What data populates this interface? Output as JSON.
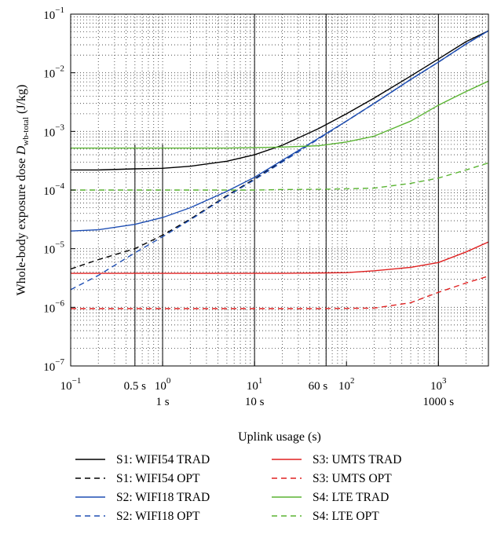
{
  "chart_data": {
    "type": "line",
    "title": "",
    "xlabel": "Uplink usage (s)",
    "ylabel": {
      "prefix": "Whole-body exposure dose ",
      "symbol": "D",
      "subscript": "wb-total",
      "unit": " (J/kg)"
    },
    "x_scale": "log",
    "y_scale": "log",
    "xlim": [
      0.1,
      3500
    ],
    "ylim": [
      1e-07,
      0.1
    ],
    "x_ticks": [
      {
        "value": 0.1,
        "base": "10",
        "exp": "−1"
      },
      {
        "value": 1,
        "base": "10",
        "exp": "0"
      },
      {
        "value": 10,
        "base": "10",
        "exp": "1"
      },
      {
        "value": 100,
        "base": "10",
        "exp": "2"
      },
      {
        "value": 1000,
        "base": "10",
        "exp": "3"
      }
    ],
    "y_ticks": [
      {
        "value": 1e-07,
        "base": "10",
        "exp": "−7"
      },
      {
        "value": 1e-06,
        "base": "10",
        "exp": "−6"
      },
      {
        "value": 1e-05,
        "base": "10",
        "exp": "−5"
      },
      {
        "value": 0.0001,
        "base": "10",
        "exp": "−4"
      },
      {
        "value": 0.001,
        "base": "10",
        "exp": "−3"
      },
      {
        "value": 0.01,
        "base": "10",
        "exp": "−2"
      },
      {
        "value": 0.1,
        "base": "10",
        "exp": "−1"
      }
    ],
    "grid": "dotted minor grid on both axes",
    "reference_lines": [
      {
        "x": 0.5,
        "label": "0.5 s",
        "y_top": 0.0006
      },
      {
        "x": 1,
        "label": "1 s",
        "y_top": 0.0006
      },
      {
        "x": 10,
        "label": "10 s",
        "y_top": 0.1
      },
      {
        "x": 60,
        "label": "60 s",
        "y_top": 0.1
      },
      {
        "x": 1000,
        "label": "1000 s",
        "y_top": 0.1
      }
    ],
    "x": [
      0.1,
      0.2,
      0.5,
      1,
      2,
      5,
      10,
      20,
      50,
      100,
      200,
      500,
      1000,
      2000,
      3500
    ],
    "series": [
      {
        "name": "S1: WIFI54 TRAD",
        "color": "#000000",
        "dash": "solid",
        "values": [
          0.00022,
          0.00022,
          0.00023,
          0.000235,
          0.000255,
          0.00031,
          0.0004,
          0.00058,
          0.00112,
          0.002,
          0.0037,
          0.0088,
          0.0172,
          0.034,
          0.052
        ]
      },
      {
        "name": "S1: WIFI54 OPT",
        "color": "#000000",
        "dash": "dashed",
        "values": [
          4.5e-06,
          6.5e-06,
          1e-05,
          1.7e-05,
          3.2e-05,
          8e-05,
          0.000155,
          0.00031,
          0.00076,
          0.0015,
          0.003,
          0.0077,
          0.0152,
          0.031,
          0.052
        ]
      },
      {
        "name": "S2: WIFI18 TRAD",
        "color": "#1f4fb4",
        "dash": "solid",
        "values": [
          2e-05,
          2.1e-05,
          2.6e-05,
          3.4e-05,
          5e-05,
          9.5e-05,
          0.000165,
          0.00032,
          0.00077,
          0.0015,
          0.003,
          0.0077,
          0.0152,
          0.031,
          0.052
        ]
      },
      {
        "name": "S2: WIFI18 OPT",
        "color": "#1f4fb4",
        "dash": "dashed",
        "values": [
          2e-06,
          3.5e-06,
          8.5e-06,
          1.6e-05,
          3.1e-05,
          7.8e-05,
          0.00015,
          0.0003,
          0.00075,
          0.0015,
          0.003,
          0.0077,
          0.0152,
          0.031,
          0.052
        ]
      },
      {
        "name": "S3: UMTS TRAD",
        "color": "#e02020",
        "dash": "solid",
        "values": [
          3.8e-06,
          3.8e-06,
          3.8e-06,
          3.8e-06,
          3.8e-06,
          3.8e-06,
          3.8e-06,
          3.8e-06,
          3.85e-06,
          3.9e-06,
          4.2e-06,
          4.8e-06,
          5.8e-06,
          8.8e-06,
          1.3e-05
        ]
      },
      {
        "name": "S3: UMTS OPT",
        "color": "#e02020",
        "dash": "dashed",
        "values": [
          9.5e-07,
          9.5e-07,
          9.5e-07,
          9.5e-07,
          9.5e-07,
          9.5e-07,
          9.5e-07,
          9.5e-07,
          9.5e-07,
          9.6e-07,
          9.7e-07,
          1.2e-06,
          1.8e-06,
          2.6e-06,
          3.4e-06
        ]
      },
      {
        "name": "S4: LTE TRAD",
        "color": "#5ab432",
        "dash": "solid",
        "values": [
          0.00052,
          0.00052,
          0.00052,
          0.00052,
          0.00052,
          0.00052,
          0.00053,
          0.00054,
          0.00057,
          0.00066,
          0.00083,
          0.0015,
          0.0028,
          0.0048,
          0.0072
        ]
      },
      {
        "name": "S4: LTE OPT",
        "color": "#5ab432",
        "dash": "dashed",
        "values": [
          0.0001,
          0.0001,
          0.0001,
          0.0001,
          0.0001,
          0.0001,
          0.0001,
          0.000102,
          0.000103,
          0.000105,
          0.000108,
          0.00013,
          0.00016,
          0.00022,
          0.00029
        ]
      }
    ],
    "legend": {
      "placement": "bottom",
      "columns": 2
    }
  }
}
